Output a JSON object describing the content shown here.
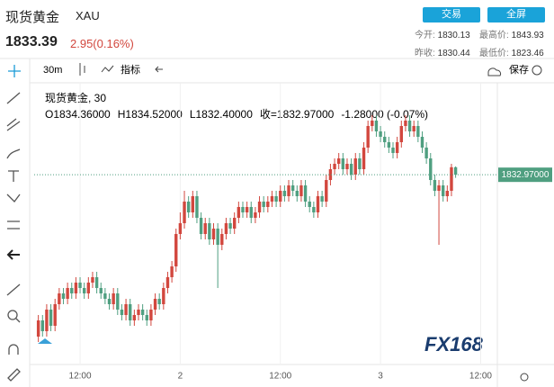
{
  "header": {
    "symbol": "现货黄金",
    "code": "XAU",
    "price": "1833.39",
    "change": "2.95(0.16%)",
    "buttons": [
      "交易",
      "全屏"
    ],
    "stats": [
      {
        "label": "今开:",
        "value": "1830.13"
      },
      {
        "label": "最高价:",
        "value": "1843.93"
      },
      {
        "label": "昨收:",
        "value": "1830.44"
      },
      {
        "label": "最低价:",
        "value": "1823.46"
      }
    ]
  },
  "toolbar": {
    "interval": "30m",
    "indicator": "指标",
    "save": "保存"
  },
  "legend": {
    "title": "现货黄金, 30",
    "ohlc": [
      "O1834.36000",
      "H1834.52000",
      "L1832.40000",
      "收=1832.97000",
      "-1.28000 (-0.07%)"
    ]
  },
  "watermark": "FX168",
  "chart_data": {
    "type": "candlestick",
    "up_color": "#d2473e",
    "down_color": "#4f9f80",
    "xlim": [
      -1,
      110
    ],
    "ylim": [
      1798,
      1850
    ],
    "xticks": [
      {
        "value": 10,
        "label": "12:00"
      },
      {
        "value": 34,
        "label": "2"
      },
      {
        "value": 58,
        "label": "12:00"
      },
      {
        "value": 82,
        "label": "3"
      },
      {
        "value": 106,
        "label": "12:00"
      }
    ],
    "last_price": {
      "value": 1832.97,
      "label": "1832.97000"
    },
    "open": [
      1803,
      1806,
      1804,
      1808,
      1805,
      1809,
      1811,
      1810,
      1812,
      1811,
      1813,
      1812,
      1811,
      1813,
      1814,
      1812,
      1811,
      1810,
      1809,
      1811,
      1808,
      1807,
      1809,
      1806,
      1807,
      1808,
      1807,
      1806,
      1808,
      1810,
      1809,
      1812,
      1814,
      1816,
      1822,
      1824,
      1828,
      1826,
      1829,
      1825,
      1822,
      1824,
      1821,
      1823,
      1820,
      1822,
      1824,
      1823,
      1825,
      1827,
      1826,
      1827,
      1825,
      1826,
      1828,
      1827,
      1828,
      1829,
      1828,
      1830,
      1829,
      1831,
      1830,
      1829,
      1831,
      1828,
      1827,
      1826,
      1829,
      1828,
      1832,
      1834,
      1835,
      1836,
      1834,
      1835,
      1833,
      1836,
      1834,
      1838,
      1842,
      1843,
      1841,
      1840,
      1839,
      1838,
      1837,
      1839,
      1842,
      1843,
      1841,
      1842,
      1840,
      1838,
      1836,
      1832,
      1830,
      1831,
      1829,
      1830,
      1834.36
    ],
    "high": [
      1807,
      1807,
      1809,
      1809,
      1810,
      1812,
      1812,
      1813,
      1813,
      1814,
      1814,
      1813,
      1814,
      1815,
      1815,
      1813,
      1812,
      1811,
      1812,
      1812,
      1809,
      1810,
      1810,
      1808,
      1809,
      1809,
      1808,
      1809,
      1811,
      1811,
      1813,
      1815,
      1817,
      1823,
      1826,
      1830,
      1829,
      1830,
      1830,
      1826,
      1825,
      1825,
      1824,
      1824,
      1823,
      1825,
      1825,
      1826,
      1828,
      1828,
      1828,
      1828,
      1827,
      1829,
      1829,
      1829,
      1830,
      1830,
      1831,
      1831,
      1832,
      1832,
      1831,
      1832,
      1832,
      1829,
      1828,
      1830,
      1830,
      1833,
      1835,
      1836,
      1837,
      1837,
      1836,
      1836,
      1837,
      1837,
      1839,
      1843,
      1844,
      1844,
      1842,
      1841,
      1840,
      1839,
      1840,
      1843,
      1844,
      1844,
      1843,
      1843,
      1841,
      1839,
      1837,
      1833,
      1832,
      1832,
      1831,
      1835,
      1834.52
    ],
    "low": [
      1802,
      1803,
      1803,
      1804,
      1804,
      1808,
      1809,
      1809,
      1810,
      1810,
      1811,
      1810,
      1810,
      1812,
      1811,
      1810,
      1809,
      1808,
      1808,
      1807,
      1806,
      1806,
      1805,
      1805,
      1806,
      1806,
      1805,
      1805,
      1807,
      1808,
      1808,
      1811,
      1813,
      1815,
      1821,
      1823,
      1825,
      1825,
      1824,
      1821,
      1821,
      1820,
      1820,
      1812,
      1819,
      1821,
      1822,
      1822,
      1824,
      1825,
      1825,
      1824,
      1824,
      1825,
      1826,
      1826,
      1827,
      1827,
      1827,
      1828,
      1828,
      1829,
      1828,
      1828,
      1827,
      1826,
      1825,
      1825,
      1827,
      1827,
      1831,
      1833,
      1834,
      1833,
      1833,
      1832,
      1832,
      1833,
      1833,
      1837,
      1841,
      1840,
      1839,
      1838,
      1837,
      1836,
      1836,
      1838,
      1841,
      1840,
      1840,
      1839,
      1837,
      1835,
      1831,
      1829,
      1820,
      1828,
      1828,
      1829,
      1832.4
    ],
    "close": [
      1806,
      1804,
      1808,
      1805,
      1809,
      1811,
      1810,
      1812,
      1811,
      1813,
      1812,
      1811,
      1813,
      1814,
      1812,
      1811,
      1810,
      1809,
      1811,
      1808,
      1807,
      1809,
      1806,
      1807,
      1808,
      1807,
      1806,
      1808,
      1810,
      1809,
      1812,
      1814,
      1816,
      1822,
      1824,
      1828,
      1826,
      1829,
      1825,
      1822,
      1824,
      1821,
      1823,
      1820,
      1822,
      1824,
      1823,
      1825,
      1827,
      1826,
      1827,
      1825,
      1826,
      1828,
      1827,
      1828,
      1829,
      1828,
      1830,
      1829,
      1831,
      1830,
      1829,
      1831,
      1828,
      1827,
      1826,
      1829,
      1828,
      1832,
      1834,
      1835,
      1836,
      1834,
      1835,
      1833,
      1836,
      1834,
      1838,
      1842,
      1843,
      1841,
      1840,
      1839,
      1838,
      1837,
      1839,
      1842,
      1843,
      1841,
      1842,
      1840,
      1838,
      1836,
      1832,
      1830,
      1831,
      1829,
      1830,
      1834.36,
      1832.97
    ]
  }
}
